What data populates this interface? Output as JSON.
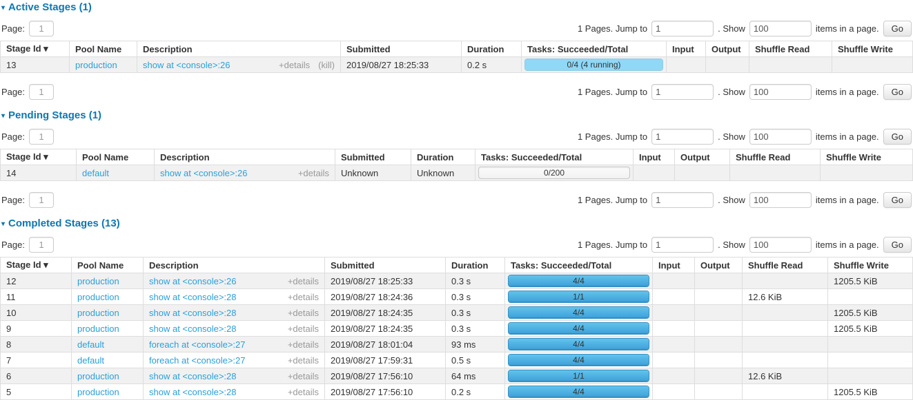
{
  "pagination": {
    "page_label": "Page:",
    "page_value": "1",
    "pages_text": "1 Pages. Jump to",
    "jump_value": "1",
    "show_label": ". Show",
    "show_value": "100",
    "items_text": "items in a page.",
    "go_label": "Go"
  },
  "colors": {
    "title_blue": "#0d77b3",
    "link_blue": "#2b9fd9",
    "bar_done": "#3d9fd9",
    "bar_running": "#8fd8f6",
    "row_stripe": "#f1f1f1"
  },
  "icons": {
    "collapse_arrow": "▾",
    "sort_arrow": "▾"
  },
  "sections": [
    {
      "id": "active",
      "title": "Active Stages (1)",
      "columns": [
        "Stage Id ▾",
        "Pool Name",
        "Description",
        "Submitted",
        "Duration",
        "Tasks: Succeeded/Total",
        "Input",
        "Output",
        "Shuffle Read",
        "Shuffle Write"
      ],
      "rows": [
        {
          "stage_id": "13",
          "pool": "production",
          "desc_link": "show at <console>:26",
          "details": "+details",
          "kill": "(kill)",
          "submitted": "2019/08/27 18:25:33",
          "duration": "0.2 s",
          "tasks": {
            "text": "0/4 (4 running)",
            "kind": "running"
          },
          "input": "",
          "output": "",
          "shuffle_read": "",
          "shuffle_write": ""
        }
      ],
      "bottom_pager": true
    },
    {
      "id": "pending",
      "title": "Pending Stages (1)",
      "columns": [
        "Stage Id ▾",
        "Pool Name",
        "Description",
        "Submitted",
        "Duration",
        "Tasks: Succeeded/Total",
        "Input",
        "Output",
        "Shuffle Read",
        "Shuffle Write"
      ],
      "rows": [
        {
          "stage_id": "14",
          "pool": "default",
          "desc_link": "show at <console>:26",
          "details": "+details",
          "kill": null,
          "submitted": "Unknown",
          "duration": "Unknown",
          "tasks": {
            "text": "0/200",
            "kind": "empty"
          },
          "input": "",
          "output": "",
          "shuffle_read": "",
          "shuffle_write": ""
        }
      ],
      "bottom_pager": true
    },
    {
      "id": "completed",
      "title": "Completed Stages (13)",
      "columns": [
        "Stage Id ▾",
        "Pool Name",
        "Description",
        "Submitted",
        "Duration",
        "Tasks: Succeeded/Total",
        "Input",
        "Output",
        "Shuffle Read",
        "Shuffle Write"
      ],
      "rows": [
        {
          "stage_id": "12",
          "pool": "production",
          "desc_link": "show at <console>:26",
          "details": "+details",
          "kill": null,
          "submitted": "2019/08/27 18:25:33",
          "duration": "0.3 s",
          "tasks": {
            "text": "4/4",
            "kind": "done"
          },
          "input": "",
          "output": "",
          "shuffle_read": "",
          "shuffle_write": "1205.5 KiB"
        },
        {
          "stage_id": "11",
          "pool": "production",
          "desc_link": "show at <console>:28",
          "details": "+details",
          "kill": null,
          "submitted": "2019/08/27 18:24:36",
          "duration": "0.3 s",
          "tasks": {
            "text": "1/1",
            "kind": "done"
          },
          "input": "",
          "output": "",
          "shuffle_read": "12.6 KiB",
          "shuffle_write": ""
        },
        {
          "stage_id": "10",
          "pool": "production",
          "desc_link": "show at <console>:28",
          "details": "+details",
          "kill": null,
          "submitted": "2019/08/27 18:24:35",
          "duration": "0.3 s",
          "tasks": {
            "text": "4/4",
            "kind": "done"
          },
          "input": "",
          "output": "",
          "shuffle_read": "",
          "shuffle_write": "1205.5 KiB"
        },
        {
          "stage_id": "9",
          "pool": "production",
          "desc_link": "show at <console>:28",
          "details": "+details",
          "kill": null,
          "submitted": "2019/08/27 18:24:35",
          "duration": "0.3 s",
          "tasks": {
            "text": "4/4",
            "kind": "done"
          },
          "input": "",
          "output": "",
          "shuffle_read": "",
          "shuffle_write": "1205.5 KiB"
        },
        {
          "stage_id": "8",
          "pool": "default",
          "desc_link": "foreach at <console>:27",
          "details": "+details",
          "kill": null,
          "submitted": "2019/08/27 18:01:04",
          "duration": "93 ms",
          "tasks": {
            "text": "4/4",
            "kind": "done"
          },
          "input": "",
          "output": "",
          "shuffle_read": "",
          "shuffle_write": ""
        },
        {
          "stage_id": "7",
          "pool": "default",
          "desc_link": "foreach at <console>:27",
          "details": "+details",
          "kill": null,
          "submitted": "2019/08/27 17:59:31",
          "duration": "0.5 s",
          "tasks": {
            "text": "4/4",
            "kind": "done"
          },
          "input": "",
          "output": "",
          "shuffle_read": "",
          "shuffle_write": ""
        },
        {
          "stage_id": "6",
          "pool": "production",
          "desc_link": "show at <console>:28",
          "details": "+details",
          "kill": null,
          "submitted": "2019/08/27 17:56:10",
          "duration": "64 ms",
          "tasks": {
            "text": "1/1",
            "kind": "done"
          },
          "input": "",
          "output": "",
          "shuffle_read": "12.6 KiB",
          "shuffle_write": ""
        },
        {
          "stage_id": "5",
          "pool": "production",
          "desc_link": "show at <console>:28",
          "details": "+details",
          "kill": null,
          "submitted": "2019/08/27 17:56:10",
          "duration": "0.2 s",
          "tasks": {
            "text": "4/4",
            "kind": "done"
          },
          "input": "",
          "output": "",
          "shuffle_read": "",
          "shuffle_write": "1205.5 KiB"
        }
      ],
      "bottom_pager": false
    }
  ]
}
